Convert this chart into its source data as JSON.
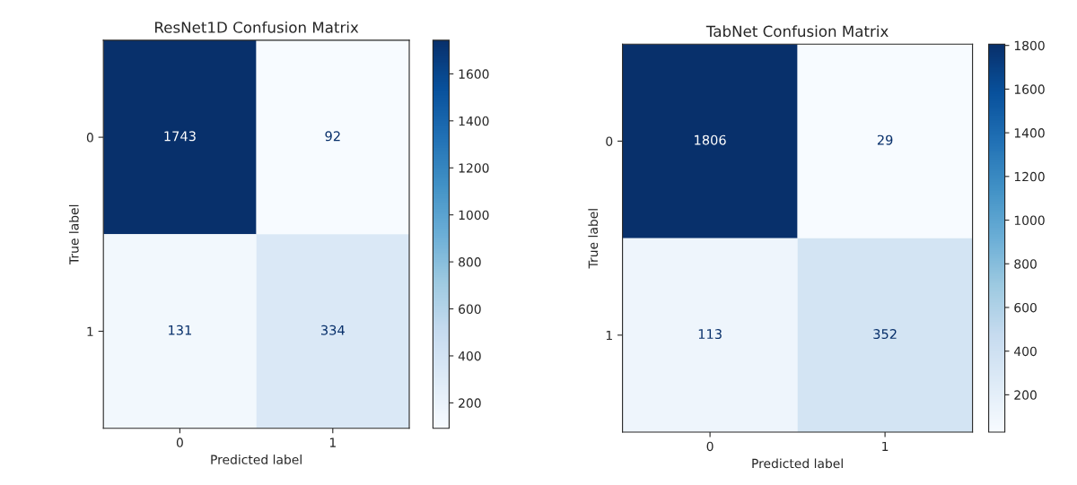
{
  "chart_data": [
    {
      "type": "heatmap",
      "title": "ResNet1D Confusion Matrix",
      "xlabel": "Predicted label",
      "ylabel": "True label",
      "categories": [
        "0",
        "1"
      ],
      "y_categories": [
        "0",
        "1"
      ],
      "cells": [
        [
          1743,
          92
        ],
        [
          131,
          334
        ]
      ],
      "clim": [
        92,
        1743
      ],
      "cticks": [
        200,
        400,
        600,
        800,
        1000,
        1200,
        1400,
        1600
      ],
      "data_labels": true
    },
    {
      "type": "heatmap",
      "title": "TabNet Confusion Matrix",
      "xlabel": "Predicted label",
      "ylabel": "True label",
      "categories": [
        "0",
        "1"
      ],
      "y_categories": [
        "0",
        "1"
      ],
      "cells": [
        [
          1806,
          29
        ],
        [
          113,
          352
        ]
      ],
      "clim": [
        29,
        1806
      ],
      "cticks": [
        200,
        400,
        600,
        800,
        1000,
        1200,
        1400,
        1600,
        1800
      ],
      "data_labels": true
    }
  ]
}
